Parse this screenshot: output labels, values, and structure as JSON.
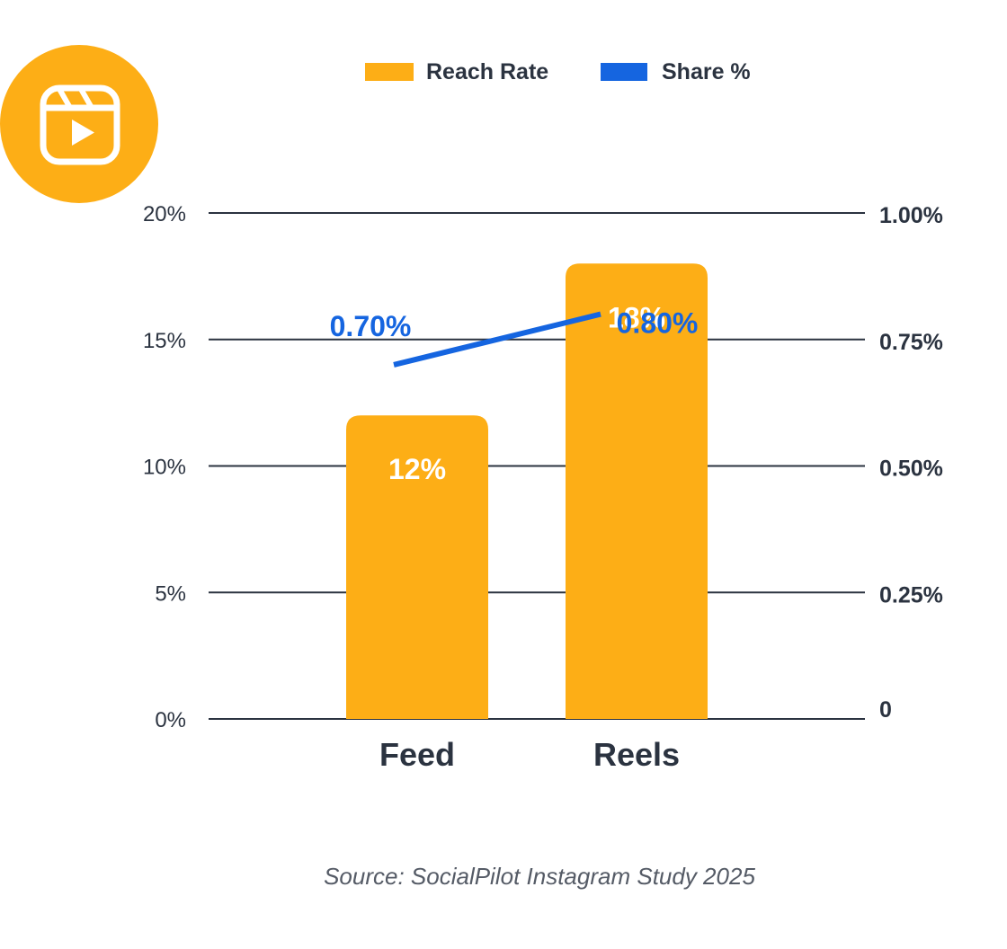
{
  "chart_data": {
    "type": "bar",
    "title": "",
    "categories": [
      "Feed",
      "Reels"
    ],
    "series": [
      {
        "name": "Reach Rate",
        "kind": "bar",
        "axis": "left",
        "values": [
          12,
          18
        ],
        "value_labels": [
          "12%",
          "18%"
        ],
        "color": "#FDAE16"
      },
      {
        "name": "Share %",
        "kind": "line",
        "axis": "right",
        "values": [
          0.7,
          0.8
        ],
        "value_labels": [
          "0.70%",
          "0.80%"
        ],
        "color": "#1565E0"
      }
    ],
    "left_axis": {
      "ylim": [
        0,
        20
      ],
      "ticks": [
        0,
        5,
        10,
        15,
        20
      ],
      "tick_labels": [
        "0%",
        "5%",
        "10%",
        "15%",
        "20%"
      ]
    },
    "right_axis": {
      "ylim": [
        0,
        1.0
      ],
      "ticks": [
        0,
        0.25,
        0.5,
        0.75,
        1.0
      ],
      "tick_labels": [
        "0",
        "0.25%",
        "0.50%",
        "0.75%",
        "1.00%"
      ]
    },
    "legend": {
      "placement": "top-center",
      "items": [
        "Reach Rate",
        "Share %"
      ]
    },
    "grid": true,
    "xlabel": "",
    "ylabel": ""
  },
  "source": "Source: SocialPilot Instagram Study 2025",
  "icon": {
    "name": "reels-icon",
    "color": "#FDAE16"
  },
  "colors": {
    "bar": "#FDAE16",
    "line": "#1565E0",
    "grid": "#2b3340",
    "text": "#2b3340"
  }
}
